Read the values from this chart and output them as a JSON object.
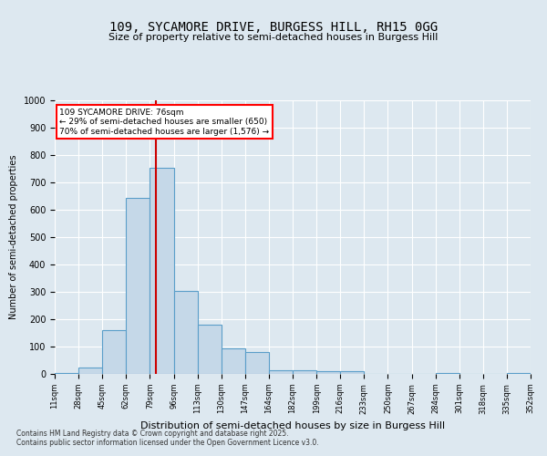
{
  "title1": "109, SYCAMORE DRIVE, BURGESS HILL, RH15 0GG",
  "title2": "Size of property relative to semi-detached houses in Burgess Hill",
  "xlabel": "Distribution of semi-detached houses by size in Burgess Hill",
  "ylabel": "Number of semi-detached properties",
  "tick_labels": [
    "11sqm",
    "28sqm",
    "45sqm",
    "62sqm",
    "79sqm",
    "96sqm",
    "113sqm",
    "130sqm",
    "147sqm",
    "164sqm",
    "182sqm",
    "199sqm",
    "216sqm",
    "233sqm",
    "250sqm",
    "267sqm",
    "284sqm",
    "301sqm",
    "318sqm",
    "335sqm",
    "352sqm"
  ],
  "bar_values": [
    5,
    25,
    160,
    645,
    755,
    305,
    180,
    95,
    80,
    15,
    15,
    10,
    10,
    0,
    0,
    0,
    5,
    0,
    0,
    5
  ],
  "bar_color": "#c5d8e8",
  "bar_edge_color": "#5a9ec9",
  "vline_x_pos": 3.75,
  "vline_color": "#cc0000",
  "annotation_text": "109 SYCAMORE DRIVE: 76sqm\n← 29% of semi-detached houses are smaller (650)\n70% of semi-detached houses are larger (1,576) →",
  "ylim": [
    0,
    1000
  ],
  "yticks": [
    0,
    100,
    200,
    300,
    400,
    500,
    600,
    700,
    800,
    900,
    1000
  ],
  "footnote": "Contains HM Land Registry data © Crown copyright and database right 2025.\nContains public sector information licensed under the Open Government Licence v3.0.",
  "bg_color": "#dde8f0"
}
